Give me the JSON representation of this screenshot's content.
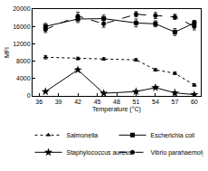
{
  "chart_data": {
    "type": "line",
    "x_label": "Temperature (°C)",
    "y_label": "MFI",
    "x": [
      37,
      42,
      46,
      51,
      54,
      57,
      60
    ],
    "xlim": [
      35,
      61
    ],
    "xticks": [
      36,
      39,
      42,
      45,
      48,
      51,
      54,
      57,
      60
    ],
    "ylim": [
      0,
      20000
    ],
    "yticks": [
      0,
      4000,
      8000,
      12000,
      16000,
      20000
    ],
    "legend": "bottom",
    "series": [
      {
        "name": "Salmonella",
        "color": "#000000",
        "marker": "triangle-up",
        "line_style": "dot",
        "values": [
          8900,
          8600,
          8500,
          8300,
          6000,
          5200,
          2500
        ],
        "errors": [
          400,
          300,
          300,
          300,
          300,
          300,
          300
        ]
      },
      {
        "name": "Escherichia coli",
        "color": "#000000",
        "marker": "square",
        "line_style": "solid",
        "values": [
          16000,
          17700,
          17800,
          16800,
          16600,
          14700,
          16800
        ],
        "errors": [
          700,
          800,
          800,
          900,
          700,
          800,
          600
        ]
      },
      {
        "name": "Staphylococcus aureus",
        "color": "#000000",
        "marker": "star",
        "line_style": "solid",
        "values": [
          1000,
          6000,
          600,
          1000,
          1900,
          700,
          300
        ],
        "errors": [
          200,
          300,
          200,
          200,
          300,
          200,
          200
        ]
      },
      {
        "name": "Vibrio parahaemolyticus",
        "color": "#000000",
        "marker": "circle",
        "line_style": "dash",
        "values": [
          15300,
          18400,
          16600,
          18800,
          18500,
          18200,
          16000
        ],
        "errors": [
          700,
          900,
          800,
          600,
          700,
          600,
          800
        ]
      }
    ]
  }
}
